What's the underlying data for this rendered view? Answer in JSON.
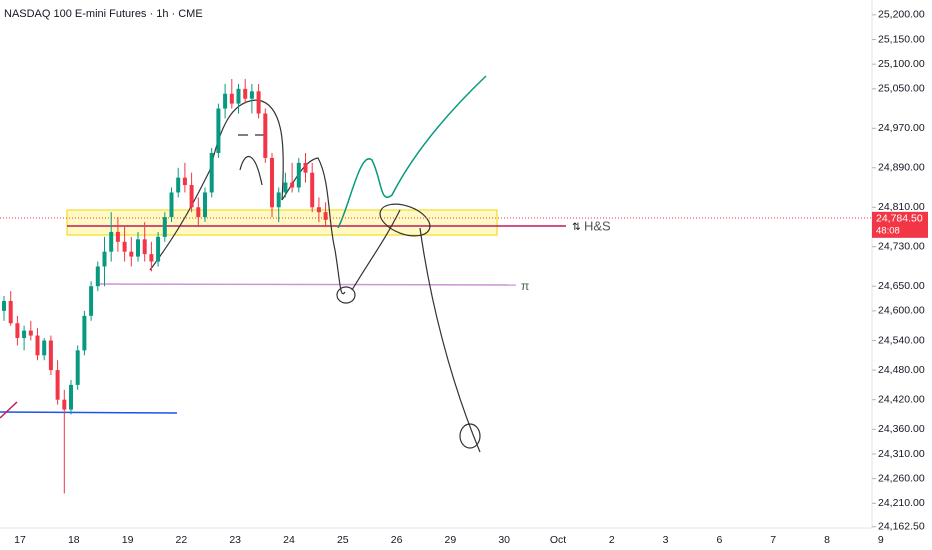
{
  "chart_data": {
    "type": "candlestick",
    "title": "NASDAQ 100 E-mini Futures · 1h · CME",
    "categories": [
      "17",
      "18",
      "19",
      "22",
      "23",
      "24",
      "25",
      "26",
      "29",
      "30",
      "Oct",
      "2",
      "3",
      "6",
      "7",
      "8",
      "9"
    ],
    "ohlc": [
      [
        24600,
        24630,
        24580,
        24620
      ],
      [
        24620,
        24640,
        24570,
        24575
      ],
      [
        24575,
        24590,
        24530,
        24545
      ],
      [
        24545,
        24570,
        24520,
        24560
      ],
      [
        24560,
        24580,
        24540,
        24550
      ],
      [
        24550,
        24565,
        24500,
        24510
      ],
      [
        24510,
        24545,
        24500,
        24540
      ],
      [
        24540,
        24550,
        24470,
        24480
      ],
      [
        24480,
        24500,
        24410,
        24420
      ],
      [
        24420,
        24440,
        24230,
        24400
      ],
      [
        24400,
        24460,
        24390,
        24450
      ],
      [
        24450,
        24530,
        24440,
        24520
      ],
      [
        24520,
        24600,
        24510,
        24590
      ],
      [
        24590,
        24660,
        24580,
        24650
      ],
      [
        24650,
        24700,
        24640,
        24690
      ],
      [
        24690,
        24750,
        24650,
        24720
      ],
      [
        24720,
        24800,
        24700,
        24760
      ],
      [
        24760,
        24790,
        24720,
        24740
      ],
      [
        24740,
        24770,
        24700,
        24720
      ],
      [
        24720,
        24750,
        24690,
        24710
      ],
      [
        24710,
        24760,
        24700,
        24745
      ],
      [
        24745,
        24780,
        24700,
        24715
      ],
      [
        24715,
        24740,
        24680,
        24700
      ],
      [
        24700,
        24760,
        24690,
        24750
      ],
      [
        24750,
        24800,
        24740,
        24790
      ],
      [
        24790,
        24850,
        24780,
        24840
      ],
      [
        24840,
        24890,
        24830,
        24870
      ],
      [
        24870,
        24900,
        24840,
        24855
      ],
      [
        24855,
        24880,
        24800,
        24810
      ],
      [
        24810,
        24830,
        24770,
        24790
      ],
      [
        24790,
        24850,
        24780,
        24840
      ],
      [
        24840,
        24930,
        24830,
        24920
      ],
      [
        24920,
        25020,
        24910,
        25010
      ],
      [
        25010,
        25060,
        24990,
        25040
      ],
      [
        25040,
        25070,
        25010,
        25020
      ],
      [
        25020,
        25060,
        25000,
        25050
      ],
      [
        25050,
        25070,
        25020,
        25030
      ],
      [
        25030,
        25060,
        25000,
        25045
      ],
      [
        25045,
        25060,
        24990,
        25000
      ],
      [
        25000,
        25010,
        24900,
        24910
      ],
      [
        24910,
        24920,
        24790,
        24810
      ],
      [
        24810,
        24850,
        24780,
        24840
      ],
      [
        24840,
        24880,
        24830,
        24860
      ],
      [
        24860,
        24900,
        24840,
        24850
      ],
      [
        24850,
        24910,
        24840,
        24900
      ],
      [
        24900,
        24920,
        24860,
        24880
      ],
      [
        24880,
        24900,
        24800,
        24810
      ],
      [
        24810,
        24830,
        24780,
        24800
      ],
      [
        24800,
        24820,
        24770,
        24784.5
      ]
    ],
    "up_color": "#089981",
    "down_color": "#f23645",
    "ylim": [
      24160,
      25230
    ],
    "yticks": [
      {
        "value": 25200,
        "label": "25,200.00"
      },
      {
        "value": 25150,
        "label": "25,150.00"
      },
      {
        "value": 25100,
        "label": "25,100.00"
      },
      {
        "value": 25050,
        "label": "25,050.00"
      },
      {
        "value": 24970,
        "label": "24,970.00"
      },
      {
        "value": 24890,
        "label": "24,890.00"
      },
      {
        "value": 24810,
        "label": "24,810.00"
      },
      {
        "value": 24730,
        "label": "24,730.00"
      },
      {
        "value": 24650,
        "label": "24,650.00"
      },
      {
        "value": 24600,
        "label": "24,600.00"
      },
      {
        "value": 24540,
        "label": "24,540.00"
      },
      {
        "value": 24480,
        "label": "24,480.00"
      },
      {
        "value": 24420,
        "label": "24,420.00"
      },
      {
        "value": 24360,
        "label": "24,360.00"
      },
      {
        "value": 24310,
        "label": "24,310.00"
      },
      {
        "value": 24260,
        "label": "24,260.00"
      },
      {
        "value": 24210,
        "label": "24,210.00"
      },
      {
        "value": 24162.5,
        "label": "24,162.50"
      }
    ],
    "last_price": {
      "value": 24784.5,
      "label": "24,784.50"
    },
    "countdown": "48:08",
    "annotations": [
      "H&S",
      "π"
    ],
    "grid": false
  }
}
